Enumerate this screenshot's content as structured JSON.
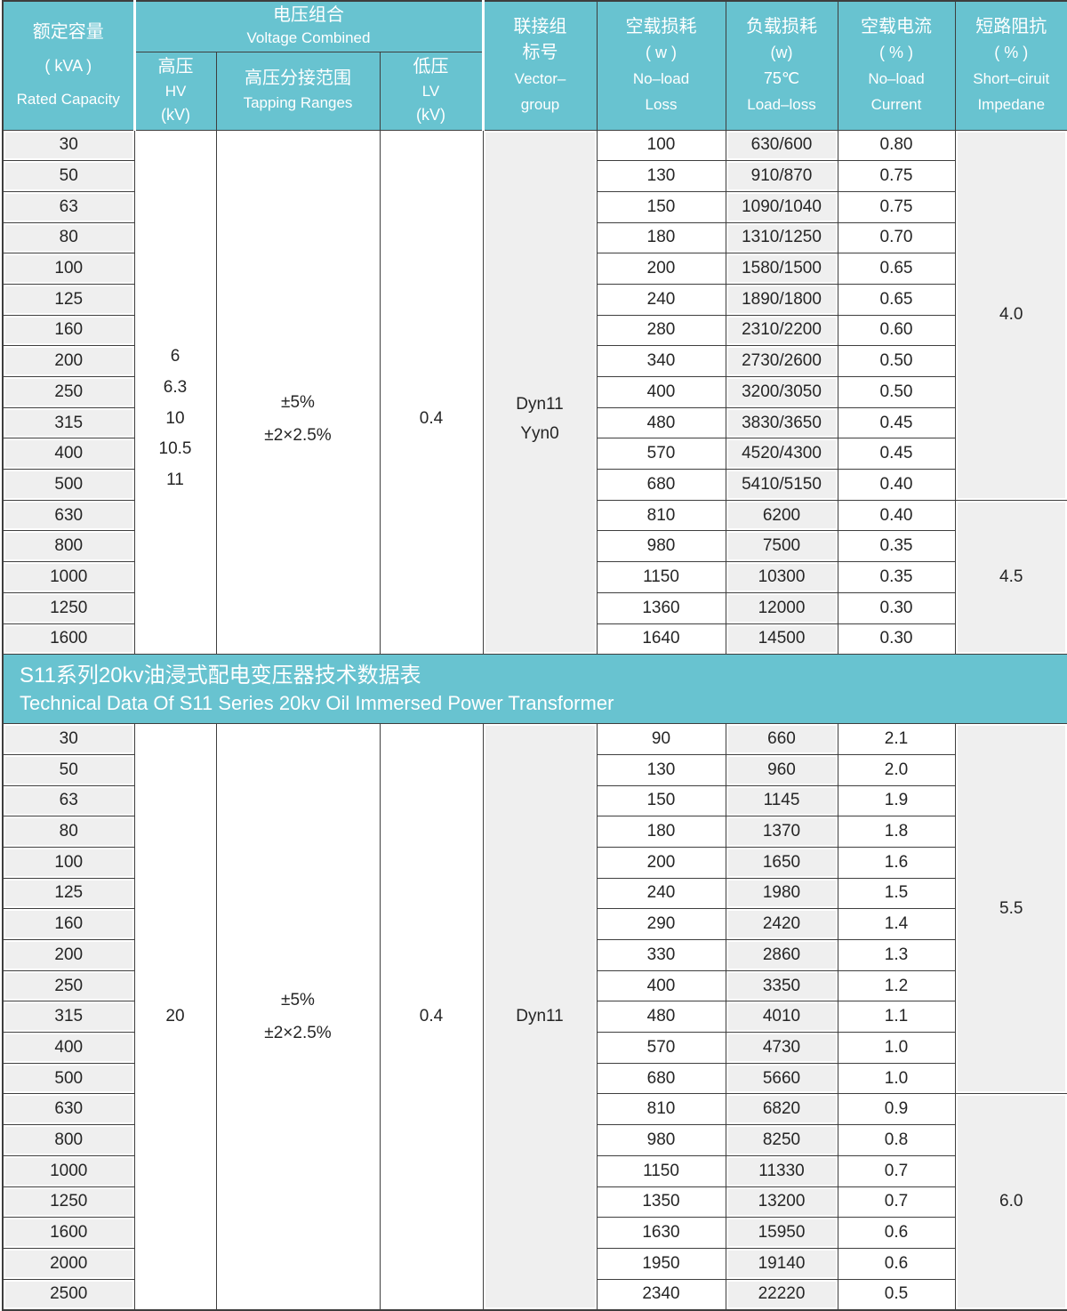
{
  "colors": {
    "header_teal": "#68c3d0",
    "cell_gray": "#efefef",
    "border": "#3e3e3e",
    "text": "#252525",
    "header_text": "#ffffff"
  },
  "header": {
    "rated_capacity": {
      "zh": "额定容量",
      "unit": "( kVA )",
      "en": "Rated  Capacity"
    },
    "voltage_combined": {
      "zh": "电压组合",
      "en": "Voltage Combined"
    },
    "hv": {
      "zh": "高压",
      "en": "HV",
      "unit": "(kV)"
    },
    "tapping": {
      "zh": "高压分接范围",
      "en": "Tapping Ranges"
    },
    "lv": {
      "zh": "低压",
      "en": "LV",
      "unit": "(kV)"
    },
    "vector": {
      "zh1": "联接组",
      "zh2": "标号",
      "en1": "Vector–",
      "en2": "group"
    },
    "no_load_loss": {
      "zh": "空载损耗",
      "unit": "( w )",
      "en1": "No–load",
      "en2": "Loss"
    },
    "load_loss": {
      "zh": "负载损耗",
      "unit": "(w)",
      "temp": "75℃",
      "en": "Load–loss"
    },
    "no_load_current": {
      "zh": "空载电流",
      "unit": "( % )",
      "en1": "No–load",
      "en2": "Current"
    },
    "impedance": {
      "zh": "短路阻抗",
      "unit": "( % )",
      "en1": "Short–ciruit",
      "en2": "Impedane"
    }
  },
  "banner": {
    "zh": "S11系列20kv油浸式配电变压器技术数据表",
    "en": "Technical Data Of S11 Series 20kv Oil Immersed Power Transformer"
  },
  "table1": {
    "hv_values": [
      "6",
      "6.3",
      "10",
      "10.5",
      "11"
    ],
    "tapping_range": [
      "±5%",
      "±2×2.5%"
    ],
    "lv": "0.4",
    "vector_group": [
      "Dyn11",
      "Yyn0"
    ],
    "impedance_groups": [
      {
        "value": "4.0",
        "rows": 12
      },
      {
        "value": "4.5",
        "rows": 5
      }
    ],
    "rows": [
      {
        "capacity": "30",
        "no_load_loss": "100",
        "load_loss": "630/600",
        "no_load_current": "0.80"
      },
      {
        "capacity": "50",
        "no_load_loss": "130",
        "load_loss": "910/870",
        "no_load_current": "0.75"
      },
      {
        "capacity": "63",
        "no_load_loss": "150",
        "load_loss": "1090/1040",
        "no_load_current": "0.75"
      },
      {
        "capacity": "80",
        "no_load_loss": "180",
        "load_loss": "1310/1250",
        "no_load_current": "0.70"
      },
      {
        "capacity": "100",
        "no_load_loss": "200",
        "load_loss": "1580/1500",
        "no_load_current": "0.65"
      },
      {
        "capacity": "125",
        "no_load_loss": "240",
        "load_loss": "1890/1800",
        "no_load_current": "0.65"
      },
      {
        "capacity": "160",
        "no_load_loss": "280",
        "load_loss": "2310/2200",
        "no_load_current": "0.60"
      },
      {
        "capacity": "200",
        "no_load_loss": "340",
        "load_loss": "2730/2600",
        "no_load_current": "0.50"
      },
      {
        "capacity": "250",
        "no_load_loss": "400",
        "load_loss": "3200/3050",
        "no_load_current": "0.50"
      },
      {
        "capacity": "315",
        "no_load_loss": "480",
        "load_loss": "3830/3650",
        "no_load_current": "0.45"
      },
      {
        "capacity": "400",
        "no_load_loss": "570",
        "load_loss": "4520/4300",
        "no_load_current": "0.45"
      },
      {
        "capacity": "500",
        "no_load_loss": "680",
        "load_loss": "5410/5150",
        "no_load_current": "0.40"
      },
      {
        "capacity": "630",
        "no_load_loss": "810",
        "load_loss": "6200",
        "no_load_current": "0.40"
      },
      {
        "capacity": "800",
        "no_load_loss": "980",
        "load_loss": "7500",
        "no_load_current": "0.35"
      },
      {
        "capacity": "1000",
        "no_load_loss": "1150",
        "load_loss": "10300",
        "no_load_current": "0.35"
      },
      {
        "capacity": "1250",
        "no_load_loss": "1360",
        "load_loss": "12000",
        "no_load_current": "0.30"
      },
      {
        "capacity": "1600",
        "no_load_loss": "1640",
        "load_loss": "14500",
        "no_load_current": "0.30"
      }
    ]
  },
  "table2": {
    "hv_values": [
      "20"
    ],
    "tapping_range": [
      "±5%",
      "±2×2.5%"
    ],
    "lv": "0.4",
    "vector_group": [
      "Dyn11"
    ],
    "impedance_groups": [
      {
        "value": "5.5",
        "rows": 12
      },
      {
        "value": "6.0",
        "rows": 7
      }
    ],
    "rows": [
      {
        "capacity": "30",
        "no_load_loss": "90",
        "load_loss": "660",
        "no_load_current": "2.1"
      },
      {
        "capacity": "50",
        "no_load_loss": "130",
        "load_loss": "960",
        "no_load_current": "2.0"
      },
      {
        "capacity": "63",
        "no_load_loss": "150",
        "load_loss": "1145",
        "no_load_current": "1.9"
      },
      {
        "capacity": "80",
        "no_load_loss": "180",
        "load_loss": "1370",
        "no_load_current": "1.8"
      },
      {
        "capacity": "100",
        "no_load_loss": "200",
        "load_loss": "1650",
        "no_load_current": "1.6"
      },
      {
        "capacity": "125",
        "no_load_loss": "240",
        "load_loss": "1980",
        "no_load_current": "1.5"
      },
      {
        "capacity": "160",
        "no_load_loss": "290",
        "load_loss": "2420",
        "no_load_current": "1.4"
      },
      {
        "capacity": "200",
        "no_load_loss": "330",
        "load_loss": "2860",
        "no_load_current": "1.3"
      },
      {
        "capacity": "250",
        "no_load_loss": "400",
        "load_loss": "3350",
        "no_load_current": "1.2"
      },
      {
        "capacity": "315",
        "no_load_loss": "480",
        "load_loss": "4010",
        "no_load_current": "1.1"
      },
      {
        "capacity": "400",
        "no_load_loss": "570",
        "load_loss": "4730",
        "no_load_current": "1.0"
      },
      {
        "capacity": "500",
        "no_load_loss": "680",
        "load_loss": "5660",
        "no_load_current": "1.0"
      },
      {
        "capacity": "630",
        "no_load_loss": "810",
        "load_loss": "6820",
        "no_load_current": "0.9"
      },
      {
        "capacity": "800",
        "no_load_loss": "980",
        "load_loss": "8250",
        "no_load_current": "0.8"
      },
      {
        "capacity": "1000",
        "no_load_loss": "1150",
        "load_loss": "11330",
        "no_load_current": "0.7"
      },
      {
        "capacity": "1250",
        "no_load_loss": "1350",
        "load_loss": "13200",
        "no_load_current": "0.7"
      },
      {
        "capacity": "1600",
        "no_load_loss": "1630",
        "load_loss": "15950",
        "no_load_current": "0.6"
      },
      {
        "capacity": "2000",
        "no_load_loss": "1950",
        "load_loss": "19140",
        "no_load_current": "0.6"
      },
      {
        "capacity": "2500",
        "no_load_loss": "2340",
        "load_loss": "22220",
        "no_load_current": "0.5"
      }
    ]
  }
}
